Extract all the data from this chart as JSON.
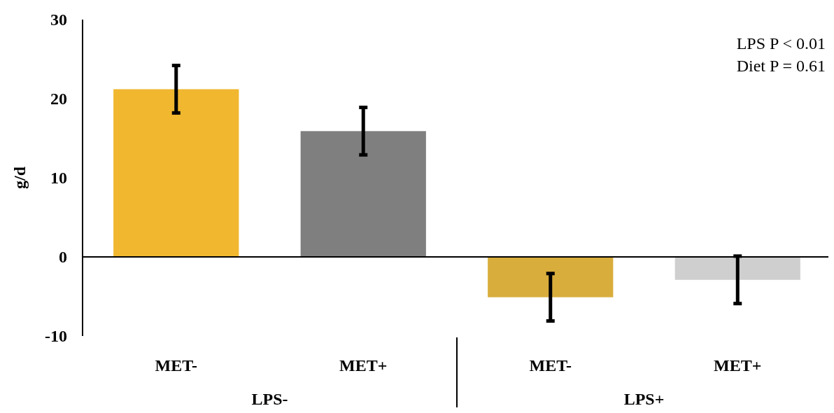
{
  "chart_data": {
    "type": "bar",
    "ylabel": "g/d",
    "categories": [
      "MET-",
      "MET+",
      "MET-",
      "MET+"
    ],
    "values": [
      21.2,
      15.9,
      -5.1,
      -2.9
    ],
    "colors": [
      "#f0b72f",
      "#7f7f7f",
      "#d9ad3c",
      "#cfcfcf"
    ],
    "errors": [
      3,
      3,
      3,
      3
    ],
    "ref_lines": [
      {
        "axis": "y",
        "value": 0,
        "color": "#000000",
        "line_style": "solid"
      }
    ],
    "ylim": [
      -10,
      30
    ],
    "yticks": [
      -10,
      0,
      10,
      20,
      30
    ],
    "grid": false,
    "annotations": [
      "LPS P < 0.01",
      "Diet P = 0.61",
      "LPS-",
      "LPS+"
    ]
  }
}
